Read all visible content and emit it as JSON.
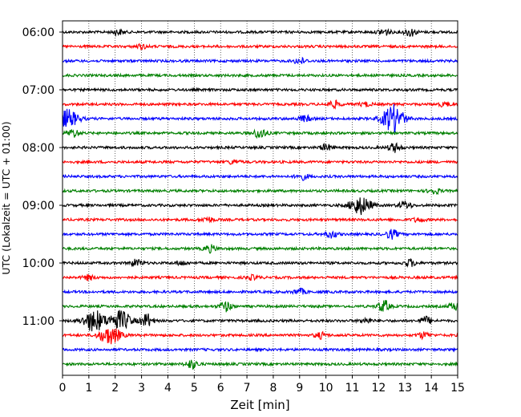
{
  "chart_data": {
    "type": "line",
    "title": "",
    "xlabel": "Zeit  [min]",
    "ylabel": "UTC (Lokalzeit = UTC + 01:00)",
    "xlim": [
      0,
      15
    ],
    "xticks": [
      0,
      1,
      2,
      3,
      4,
      5,
      6,
      7,
      8,
      9,
      10,
      11,
      12,
      13,
      14,
      15
    ],
    "ytick_labels": [
      "06:00",
      "07:00",
      "08:00",
      "09:00",
      "10:00",
      "11:00"
    ],
    "grid_x": true,
    "trace_colors": [
      "#000000",
      "#ff0000",
      "#0000ff",
      "#008000"
    ],
    "traces": [
      {
        "start": "06:00",
        "color": "#000000",
        "events": [
          {
            "t": 2.1,
            "amp": 0.25
          },
          {
            "t": 12.2,
            "amp": 0.35
          },
          {
            "t": 13.2,
            "amp": 0.4
          }
        ]
      },
      {
        "start": "06:15",
        "color": "#ff0000",
        "events": [
          {
            "t": 3.0,
            "amp": 0.2
          }
        ]
      },
      {
        "start": "06:30",
        "color": "#0000ff",
        "events": [
          {
            "t": 9.0,
            "amp": 0.3
          }
        ]
      },
      {
        "start": "06:45",
        "color": "#008000",
        "events": []
      },
      {
        "start": "07:00",
        "color": "#000000",
        "events": []
      },
      {
        "start": "07:15",
        "color": "#ff0000",
        "events": [
          {
            "t": 10.3,
            "amp": 0.35
          },
          {
            "t": 11.5,
            "amp": 0.2
          },
          {
            "t": 14.5,
            "amp": 0.2
          }
        ]
      },
      {
        "start": "07:30",
        "color": "#0000ff",
        "events": [
          {
            "t": 0.2,
            "amp": 0.9
          },
          {
            "t": 9.2,
            "amp": 0.3
          },
          {
            "t": 12.55,
            "amp": 1.4
          }
        ]
      },
      {
        "start": "07:45",
        "color": "#008000",
        "events": [
          {
            "t": 0.4,
            "amp": 0.4
          },
          {
            "t": 7.5,
            "amp": 0.55
          }
        ]
      },
      {
        "start": "08:00",
        "color": "#000000",
        "events": [
          {
            "t": 10.0,
            "amp": 0.3
          },
          {
            "t": 12.6,
            "amp": 0.45
          }
        ]
      },
      {
        "start": "08:15",
        "color": "#ff0000",
        "events": [
          {
            "t": 6.5,
            "amp": 0.2
          }
        ]
      },
      {
        "start": "08:30",
        "color": "#0000ff",
        "events": [
          {
            "t": 9.1,
            "amp": 0.3
          }
        ]
      },
      {
        "start": "08:45",
        "color": "#008000",
        "events": [
          {
            "t": 14.1,
            "amp": 0.3
          }
        ]
      },
      {
        "start": "09:00",
        "color": "#000000",
        "events": [
          {
            "t": 11.3,
            "amp": 0.9
          },
          {
            "t": 13.0,
            "amp": 0.4
          }
        ]
      },
      {
        "start": "09:15",
        "color": "#ff0000",
        "events": [
          {
            "t": 5.5,
            "amp": 0.25
          },
          {
            "t": 13.5,
            "amp": 0.2
          }
        ]
      },
      {
        "start": "09:30",
        "color": "#0000ff",
        "events": [
          {
            "t": 10.2,
            "amp": 0.35
          },
          {
            "t": 12.5,
            "amp": 0.45
          }
        ]
      },
      {
        "start": "09:45",
        "color": "#008000",
        "events": [
          {
            "t": 5.6,
            "amp": 0.35
          }
        ]
      },
      {
        "start": "10:00",
        "color": "#000000",
        "events": [
          {
            "t": 2.8,
            "amp": 0.35
          },
          {
            "t": 4.5,
            "amp": 0.2
          },
          {
            "t": 13.2,
            "amp": 0.35
          }
        ]
      },
      {
        "start": "10:15",
        "color": "#ff0000",
        "events": [
          {
            "t": 1.0,
            "amp": 0.25
          },
          {
            "t": 7.2,
            "amp": 0.2
          }
        ]
      },
      {
        "start": "10:30",
        "color": "#0000ff",
        "events": [
          {
            "t": 9.0,
            "amp": 0.3
          }
        ]
      },
      {
        "start": "10:45",
        "color": "#008000",
        "events": [
          {
            "t": 6.2,
            "amp": 0.5
          },
          {
            "t": 12.2,
            "amp": 0.6
          },
          {
            "t": 14.9,
            "amp": 0.4
          }
        ]
      },
      {
        "start": "11:00",
        "color": "#000000",
        "events": [
          {
            "t": 1.2,
            "amp": 1.1
          },
          {
            "t": 2.2,
            "amp": 1.0
          },
          {
            "t": 3.2,
            "amp": 0.7
          },
          {
            "t": 11.5,
            "amp": 0.25
          },
          {
            "t": 13.8,
            "amp": 0.4
          }
        ]
      },
      {
        "start": "11:15",
        "color": "#ff0000",
        "events": [
          {
            "t": 1.8,
            "amp": 0.9
          },
          {
            "t": 9.8,
            "amp": 0.3
          },
          {
            "t": 13.7,
            "amp": 0.3
          }
        ]
      },
      {
        "start": "11:30",
        "color": "#0000ff",
        "events": []
      },
      {
        "start": "11:45",
        "color": "#008000",
        "events": [
          {
            "t": 4.9,
            "amp": 0.45
          }
        ]
      }
    ]
  }
}
